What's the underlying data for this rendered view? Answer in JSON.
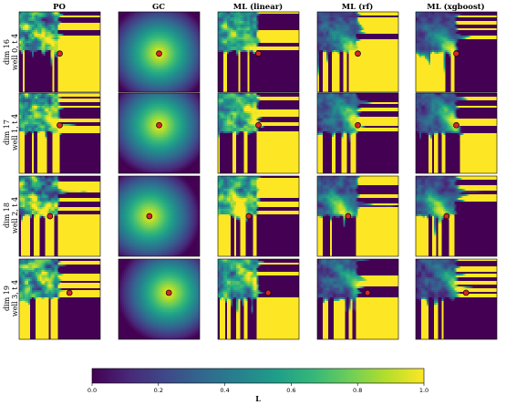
{
  "chart_data": {
    "type": "heatmap",
    "columns": [
      "PO",
      "GC",
      "ML (linear)",
      "ML (rf)",
      "ML (xgboost)"
    ],
    "rows": [
      {
        "line1": "dim 16",
        "line2": "well 0, t 4",
        "well": [
          0.5,
          0.52
        ]
      },
      {
        "line1": "dim 17",
        "line2": "well 1, t 4",
        "well": [
          0.5,
          0.4
        ]
      },
      {
        "line1": "dim 18",
        "line2": "well 2, t 4",
        "well": [
          0.38,
          0.5
        ]
      },
      {
        "line1": "dim 19",
        "line2": "well 3, t 4",
        "well": [
          0.62,
          0.42
        ]
      }
    ],
    "colorbar": {
      "label": "L",
      "range": [
        0.0,
        1.0
      ],
      "ticks": [
        "0.0",
        "0.2",
        "0.4",
        "0.6",
        "0.8",
        "1.0"
      ],
      "colormap": "viridis"
    },
    "colors": {
      "cmap": [
        "#440154",
        "#482878",
        "#3e4989",
        "#31688e",
        "#26828e",
        "#1f9e89",
        "#35b779",
        "#6ece58",
        "#b5de2b",
        "#fde725"
      ],
      "well_fill": "#d62728",
      "well_stroke": "#000000"
    }
  }
}
